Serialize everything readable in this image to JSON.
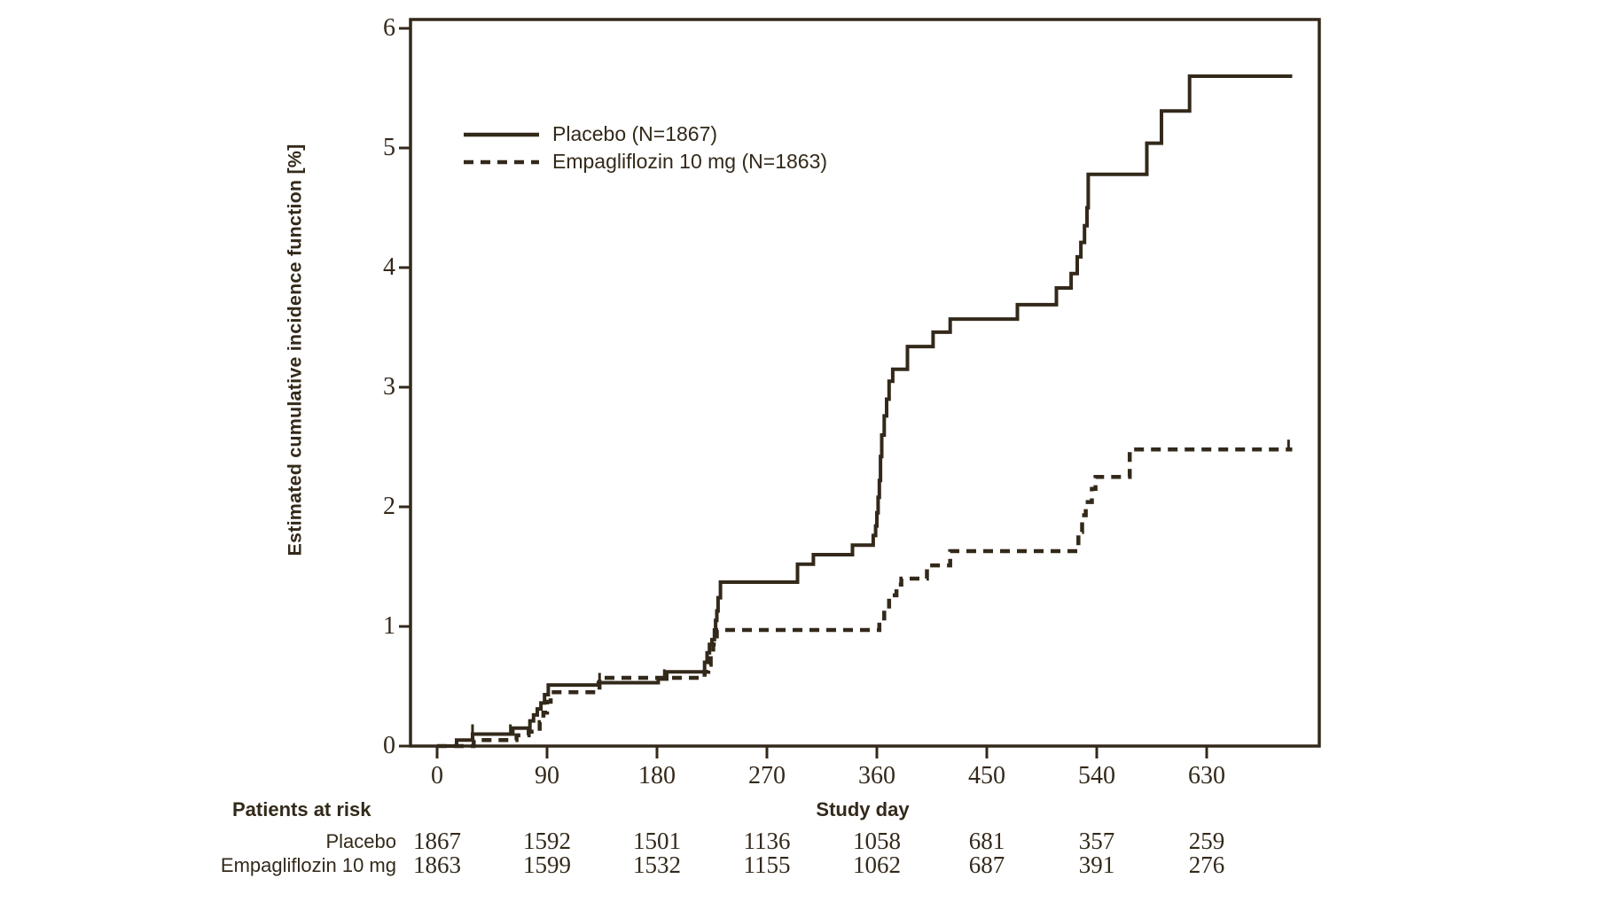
{
  "figure": {
    "background": "#ffffff",
    "ink_color": "#33291a"
  },
  "chart_data": {
    "type": "line",
    "subtype": "step-cumulative-incidence",
    "title": "",
    "xlabel": "Study day",
    "ylabel": "Estimated cumulative incidence function [%]",
    "xlim": [
      0,
      722
    ],
    "ylim": [
      0,
      6
    ],
    "x_ticks": [
      0,
      90,
      180,
      270,
      360,
      450,
      540,
      630
    ],
    "y_ticks": [
      0,
      1,
      2,
      3,
      4,
      5,
      6
    ],
    "grid": false,
    "legend_position": "inside-upper-left",
    "series": [
      {
        "id": "placebo",
        "name": "Placebo (N=1867)",
        "style": "solid",
        "step": "post",
        "points": [
          [
            0,
            0
          ],
          [
            16,
            0.05
          ],
          [
            29,
            0.1
          ],
          [
            62,
            0.15
          ],
          [
            76,
            0.21
          ],
          [
            79,
            0.26
          ],
          [
            82,
            0.31
          ],
          [
            85,
            0.36
          ],
          [
            88,
            0.43
          ],
          [
            91,
            0.51
          ],
          [
            132,
            0.53
          ],
          [
            181,
            0.56
          ],
          [
            188,
            0.62
          ],
          [
            219,
            0.7
          ],
          [
            221,
            0.78
          ],
          [
            223,
            0.85
          ],
          [
            225,
            0.89
          ],
          [
            227,
            0.97
          ],
          [
            228,
            1.05
          ],
          [
            229,
            1.13
          ],
          [
            230,
            1.24
          ],
          [
            232,
            1.37
          ],
          [
            295,
            1.52
          ],
          [
            308,
            1.6
          ],
          [
            340,
            1.68
          ],
          [
            357,
            1.76
          ],
          [
            359,
            1.84
          ],
          [
            360,
            1.95
          ],
          [
            361,
            2.08
          ],
          [
            362,
            2.22
          ],
          [
            363,
            2.42
          ],
          [
            364,
            2.6
          ],
          [
            366,
            2.76
          ],
          [
            368,
            2.9
          ],
          [
            370,
            3.05
          ],
          [
            373,
            3.15
          ],
          [
            385,
            3.34
          ],
          [
            406,
            3.46
          ],
          [
            420,
            3.57
          ],
          [
            475,
            3.69
          ],
          [
            507,
            3.83
          ],
          [
            519,
            3.95
          ],
          [
            524,
            4.09
          ],
          [
            527,
            4.21
          ],
          [
            530,
            4.35
          ],
          [
            532,
            4.5
          ],
          [
            533,
            4.78
          ],
          [
            581,
            5.04
          ],
          [
            593,
            5.31
          ],
          [
            616,
            5.6
          ],
          [
            700,
            5.6
          ]
        ],
        "censor_marks": [
          [
            29,
            0.1
          ],
          [
            60,
            0.1
          ],
          [
            133,
            0.53
          ],
          [
            186,
            0.56
          ]
        ]
      },
      {
        "id": "empagliflozin-10mg",
        "name": "Empagliflozin 10 mg (N=1863)",
        "style": "dashed",
        "step": "post",
        "points": [
          [
            0,
            0
          ],
          [
            30,
            0.05
          ],
          [
            65,
            0.09
          ],
          [
            75,
            0.12
          ],
          [
            84,
            0.2
          ],
          [
            87,
            0.28
          ],
          [
            90,
            0.37
          ],
          [
            93,
            0.45
          ],
          [
            133,
            0.57
          ],
          [
            219,
            0.62
          ],
          [
            222,
            0.68
          ],
          [
            224,
            0.76
          ],
          [
            226,
            0.85
          ],
          [
            229,
            0.97
          ],
          [
            362,
            1.05
          ],
          [
            366,
            1.15
          ],
          [
            370,
            1.26
          ],
          [
            376,
            1.35
          ],
          [
            380,
            1.4
          ],
          [
            401,
            1.51
          ],
          [
            420,
            1.63
          ],
          [
            525,
            1.79
          ],
          [
            528,
            1.93
          ],
          [
            531,
            2.04
          ],
          [
            536,
            2.15
          ],
          [
            539,
            2.25
          ],
          [
            567,
            2.48
          ],
          [
            700,
            2.48
          ]
        ],
        "censor_marks": [
          [
            697,
            2.48
          ]
        ]
      }
    ]
  },
  "risk_table": {
    "title": "Patients at risk",
    "columns": [
      0,
      90,
      180,
      270,
      360,
      450,
      540,
      630
    ],
    "rows": [
      {
        "label": "Placebo",
        "counts": [
          1867,
          1592,
          1501,
          1136,
          1058,
          681,
          357,
          259
        ]
      },
      {
        "label": "Empagliflozin 10 mg",
        "counts": [
          1863,
          1599,
          1532,
          1155,
          1062,
          687,
          391,
          276
        ]
      }
    ]
  }
}
